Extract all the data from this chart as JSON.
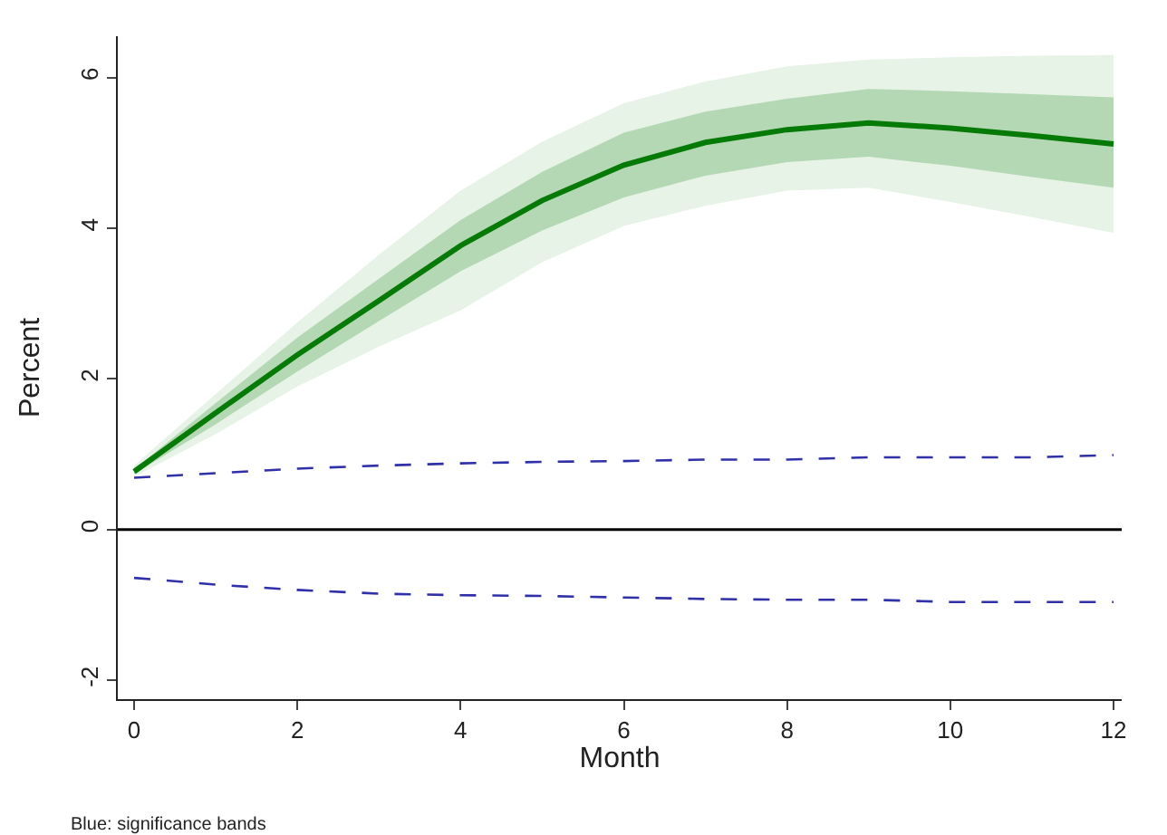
{
  "chart_data": {
    "type": "line",
    "xlabel": "Month",
    "ylabel": "Percent",
    "annotations": [
      "Blue: significance bands"
    ],
    "x": [
      0,
      1,
      2,
      3,
      4,
      5,
      6,
      7,
      8,
      9,
      10,
      11,
      12
    ],
    "xlim": [
      -0.2,
      12.1
    ],
    "xticks": [
      0,
      2,
      4,
      6,
      8,
      10,
      12
    ],
    "ylim": [
      -2.25,
      6.55
    ],
    "yticks": [
      -2,
      0,
      2,
      4,
      6
    ],
    "marker": "none",
    "ref_lines": [
      {
        "axis": "y",
        "value": 0,
        "color": "#000000"
      }
    ],
    "series": [
      {
        "type": "area",
        "color": "#e6f3e6",
        "values": [
          null,
          null,
          null,
          null,
          null,
          null,
          null,
          null,
          null,
          null,
          null,
          null,
          null
        ],
        "lower": [
          0.7,
          1.27,
          1.9,
          2.43,
          2.91,
          3.55,
          4.03,
          4.3,
          4.5,
          4.54,
          4.35,
          4.15,
          3.94
        ],
        "upper": [
          0.85,
          1.8,
          2.75,
          3.65,
          4.5,
          5.15,
          5.66,
          5.95,
          6.15,
          6.24,
          6.27,
          6.29,
          6.3
        ]
      },
      {
        "color": "#067a06",
        "line_style": "solid",
        "values": [
          0.77,
          1.55,
          2.32,
          3.04,
          3.77,
          4.37,
          4.84,
          5.14,
          5.31,
          5.4,
          5.33,
          5.23,
          5.12
        ],
        "lower": [
          0.74,
          1.4,
          2.1,
          2.77,
          3.43,
          3.97,
          4.41,
          4.7,
          4.88,
          4.95,
          4.83,
          4.68,
          4.54
        ],
        "upper": [
          0.8,
          1.68,
          2.55,
          3.33,
          4.11,
          4.75,
          5.27,
          5.55,
          5.72,
          5.85,
          5.82,
          5.78,
          5.74
        ]
      },
      {
        "color": "#3030a8",
        "line_style": "dashed",
        "values": [
          0.69,
          0.75,
          0.81,
          0.85,
          0.88,
          0.9,
          0.91,
          0.93,
          0.93,
          0.96,
          0.96,
          0.96,
          0.99
        ]
      },
      {
        "color": "#3030a8",
        "line_style": "dashed",
        "values": [
          -0.64,
          -0.73,
          -0.8,
          -0.85,
          -0.87,
          -0.88,
          -0.9,
          -0.92,
          -0.93,
          -0.93,
          -0.96,
          -0.96,
          -0.96
        ]
      }
    ]
  }
}
